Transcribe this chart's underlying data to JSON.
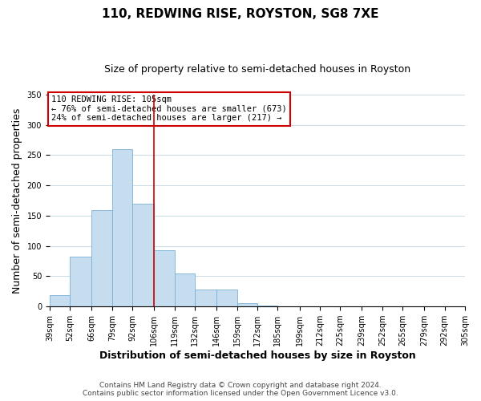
{
  "title": "110, REDWING RISE, ROYSTON, SG8 7XE",
  "subtitle": "Size of property relative to semi-detached houses in Royston",
  "xlabel": "Distribution of semi-detached houses by size in Royston",
  "ylabel": "Number of semi-detached properties",
  "bin_labels": [
    "39sqm",
    "52sqm",
    "66sqm",
    "79sqm",
    "92sqm",
    "106sqm",
    "119sqm",
    "132sqm",
    "146sqm",
    "159sqm",
    "172sqm",
    "185sqm",
    "199sqm",
    "212sqm",
    "225sqm",
    "239sqm",
    "252sqm",
    "265sqm",
    "279sqm",
    "292sqm",
    "305sqm"
  ],
  "bin_edges": [
    39,
    52,
    66,
    79,
    92,
    106,
    119,
    132,
    146,
    159,
    172,
    185,
    199,
    212,
    225,
    239,
    252,
    265,
    279,
    292,
    305
  ],
  "bar_heights": [
    19,
    82,
    159,
    260,
    170,
    93,
    55,
    28,
    28,
    6,
    1,
    0,
    0,
    0,
    0,
    0,
    0,
    0,
    0,
    0
  ],
  "bar_color": "#c5ddef",
  "bar_edge_color": "#7aafd4",
  "vline_x": 106,
  "vline_color": "#cc0000",
  "ylim": [
    0,
    350
  ],
  "annotation_title": "110 REDWING RISE: 105sqm",
  "annotation_line1": "← 76% of semi-detached houses are smaller (673)",
  "annotation_line2": "24% of semi-detached houses are larger (217) →",
  "annotation_box_color": "#ffffff",
  "annotation_box_edge_color": "#cc0000",
  "footer_line1": "Contains HM Land Registry data © Crown copyright and database right 2024.",
  "footer_line2": "Contains public sector information licensed under the Open Government Licence v3.0.",
  "background_color": "#ffffff",
  "grid_color": "#ccdde8",
  "title_fontsize": 11,
  "subtitle_fontsize": 9,
  "axis_label_fontsize": 9,
  "tick_fontsize": 7,
  "footer_fontsize": 6.5,
  "annotation_fontsize": 7.5
}
